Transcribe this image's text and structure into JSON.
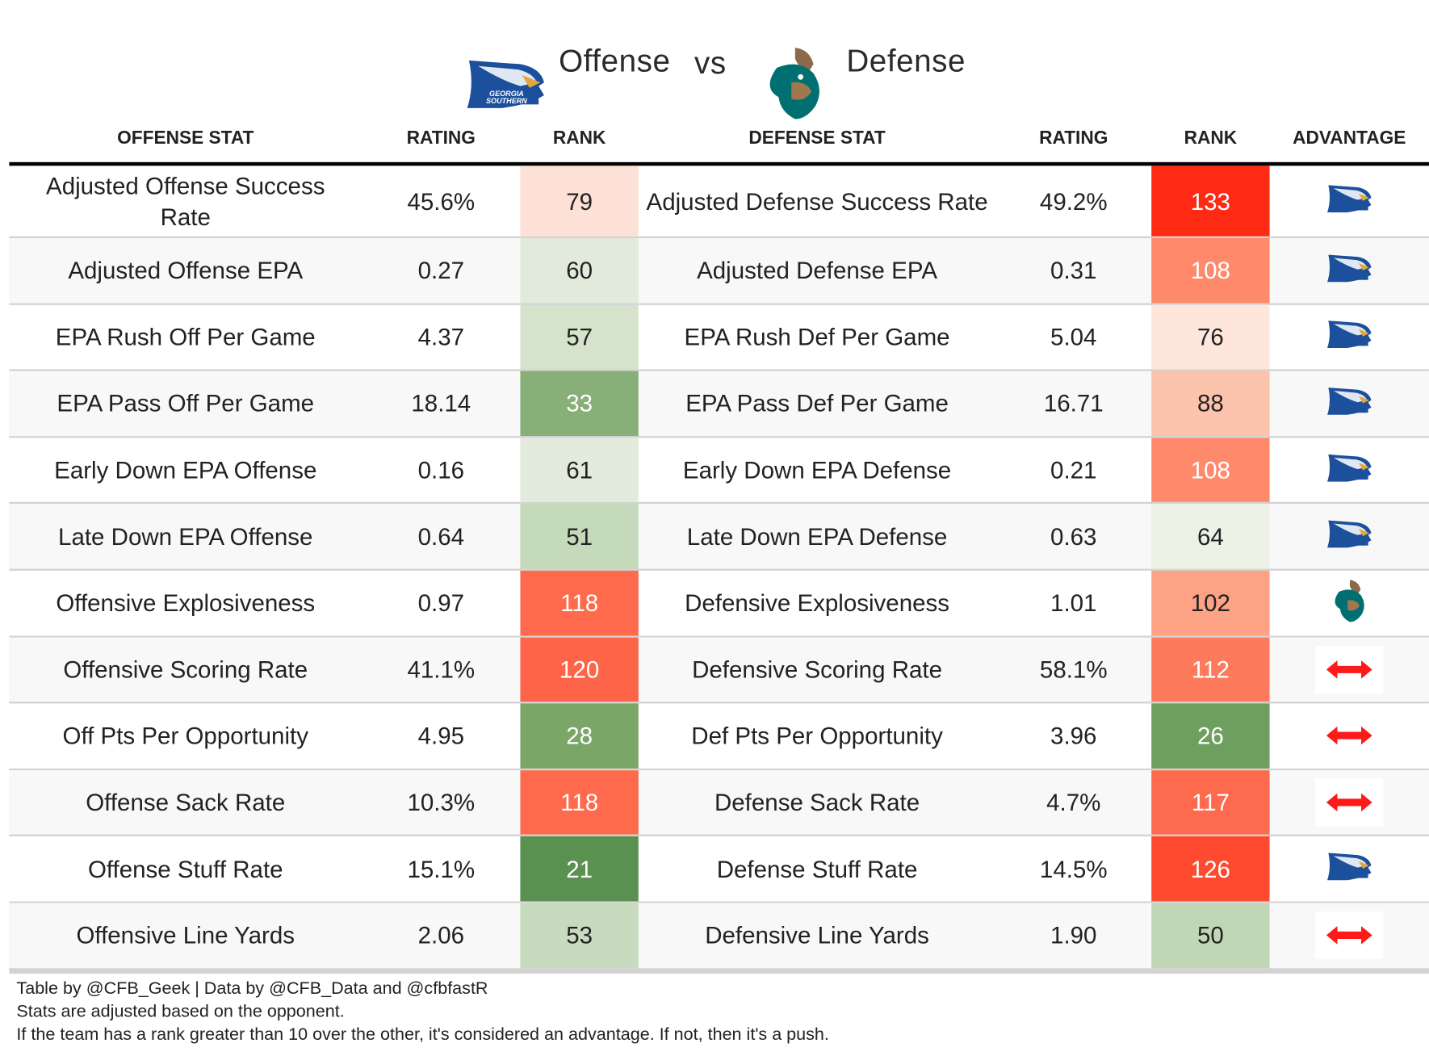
{
  "header": {
    "offense_label": "Offense",
    "vs_label": "vs",
    "defense_label": "Defense",
    "offense_logo": "georgia-southern-eagle-logo",
    "defense_logo": "coastal-carolina-chanticleer-logo",
    "logo_text": "GEORGIA SOUTHERN"
  },
  "columns": [
    "OFFENSE STAT",
    "RATING",
    "RANK",
    "DEFENSE STAT",
    "RATING",
    "RANK",
    "ADVANTAGE"
  ],
  "rows": [
    {
      "off_stat": "Adjusted Offense Success Rate",
      "off_rating": "45.6%",
      "off_rank": "79",
      "off_color": "#fde0d6",
      "def_stat": "Adjusted Defense Success Rate",
      "def_rating": "49.2%",
      "def_rank": "133",
      "def_color": "#fe2a14",
      "advantage": "offense"
    },
    {
      "off_stat": "Adjusted Offense EPA",
      "off_rating": "0.27",
      "off_rank": "60",
      "off_color": "#e2eadb",
      "def_stat": "Adjusted Defense EPA",
      "def_rating": "0.31",
      "def_rank": "108",
      "def_color": "#fe8a6b",
      "advantage": "offense"
    },
    {
      "off_stat": "EPA Rush Off Per Game",
      "off_rating": "4.37",
      "off_rank": "57",
      "off_color": "#d6e3cc",
      "def_stat": "EPA Rush Def Per Game",
      "def_rating": "5.04",
      "def_rank": "76",
      "def_color": "#fee6dd",
      "advantage": "offense"
    },
    {
      "off_stat": "EPA Pass Off Per Game",
      "off_rating": "18.14",
      "off_rank": "33",
      "off_color": "#89af78",
      "def_stat": "EPA Pass Def Per Game",
      "def_rating": "16.71",
      "def_rank": "88",
      "def_color": "#fcc4ad",
      "advantage": "offense"
    },
    {
      "off_stat": "Early Down EPA Offense",
      "off_rating": "0.16",
      "off_rank": "61",
      "off_color": "#e3ebdc",
      "def_stat": "Early Down EPA Defense",
      "def_rating": "0.21",
      "def_rank": "108",
      "def_color": "#fe8a6b",
      "advantage": "offense"
    },
    {
      "off_stat": "Late Down EPA Offense",
      "off_rating": "0.64",
      "off_rank": "51",
      "off_color": "#c5d9bb",
      "def_stat": "Late Down EPA Defense",
      "def_rating": "0.63",
      "def_rank": "64",
      "def_color": "#ecf1e6",
      "advantage": "offense"
    },
    {
      "off_stat": "Offensive Explosiveness",
      "off_rating": "0.97",
      "off_rank": "118",
      "off_color": "#fe6a4b",
      "def_stat": "Defensive Explosiveness",
      "def_rating": "1.01",
      "def_rank": "102",
      "def_color": "#fea285",
      "advantage": "defense"
    },
    {
      "off_stat": "Offensive Scoring Rate",
      "off_rating": "41.1%",
      "off_rank": "120",
      "off_color": "#fe6447",
      "def_stat": "Defensive Scoring Rate",
      "def_rating": "58.1%",
      "def_rank": "112",
      "def_color": "#fe7a5c",
      "advantage": "push"
    },
    {
      "off_stat": "Off Pts Per Opportunity",
      "off_rating": "4.95",
      "off_rank": "28",
      "off_color": "#7aa668",
      "def_stat": "Def Pts Per Opportunity",
      "def_rating": "3.96",
      "def_rank": "26",
      "def_color": "#6f9f5f",
      "advantage": "push"
    },
    {
      "off_stat": "Offense Sack Rate",
      "off_rating": "10.3%",
      "off_rank": "118",
      "off_color": "#fe6a4b",
      "def_stat": "Defense Sack Rate",
      "def_rating": "4.7%",
      "def_rank": "117",
      "def_color": "#fe6a4d",
      "advantage": "push"
    },
    {
      "off_stat": "Offense Stuff Rate",
      "off_rating": "15.1%",
      "off_rank": "21",
      "off_color": "#5a9150",
      "def_stat": "Defense Stuff Rate",
      "def_rating": "14.5%",
      "def_rank": "126",
      "def_color": "#fe4a2f",
      "advantage": "offense"
    },
    {
      "off_stat": "Offensive Line Yards",
      "off_rating": "2.06",
      "off_rank": "53",
      "off_color": "#c8dbbf",
      "def_stat": "Defensive Line Yards",
      "def_rating": "1.90",
      "def_rank": "50",
      "def_color": "#c0d6b4",
      "advantage": "push"
    }
  ],
  "push_color": "#ff1a1a",
  "footer": [
    "Table by @CFB_Geek | Data by @CFB_Data and @cfbfastR",
    "Stats are adjusted based on the opponent.",
    "If the team has a rank greater than 10 over the other, it's considered an advantage. If not, then it's a push."
  ]
}
